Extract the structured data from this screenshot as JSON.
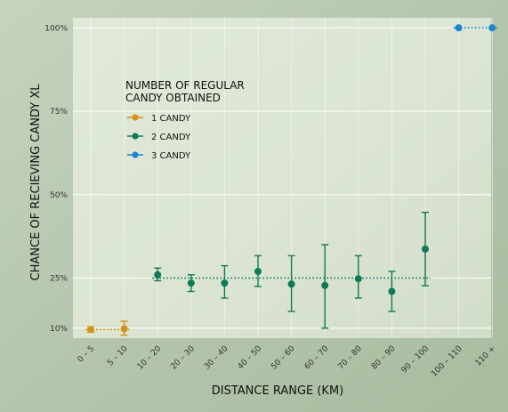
{
  "chart_data": {
    "type": "scatter",
    "xlabel": "DISTANCE RANGE (KM)",
    "ylabel": "CHANCE OF RECIEVING CANDY XL",
    "categories": [
      "0 – 5",
      "5 – 10",
      "10 – 20",
      "20 – 30",
      "30 – 40",
      "40 – 50",
      "50 – 60",
      "60 – 70",
      "70 – 80",
      "80 – 90",
      "90 – 100",
      "100 – 110",
      "110 +"
    ],
    "y_ticks": [
      {
        "value": 100,
        "label": "100%"
      },
      {
        "value": 75,
        "label": "75%"
      },
      {
        "value": 50,
        "label": "50%"
      },
      {
        "value": 25,
        "label": "25%"
      },
      {
        "value": 10,
        "label": "10%"
      }
    ],
    "ylim": [
      7,
      103
    ],
    "grid": true,
    "legend": {
      "title_line1": "NUMBER OF REGULAR",
      "title_line2": "CANDY OBTAINED",
      "placement": "top-left"
    },
    "series": [
      {
        "name": "1 CANDY",
        "color": "#d19415",
        "mean": 9.6,
        "points": [
          {
            "category": "0 – 5",
            "y": 9.6,
            "low": 8.8,
            "high": 10.4
          },
          {
            "category": "5 – 10",
            "y": 9.8,
            "low": 7.9,
            "high": 12.1
          }
        ]
      },
      {
        "name": "2 CANDY",
        "color": "#0f7a57",
        "mean": 25,
        "points": [
          {
            "category": "10 – 20",
            "y": 26.0,
            "low": 24.2,
            "high": 28.0
          },
          {
            "category": "20 – 30",
            "y": 23.5,
            "low": 21.0,
            "high": 26.0
          },
          {
            "category": "30 – 40",
            "y": 23.5,
            "low": 19.0,
            "high": 28.7
          },
          {
            "category": "40 – 50",
            "y": 27.0,
            "low": 22.5,
            "high": 31.7
          },
          {
            "category": "50 – 60",
            "y": 23.2,
            "low": 15.0,
            "high": 31.7
          },
          {
            "category": "60 – 70",
            "y": 22.8,
            "low": 10.0,
            "high": 35.0
          },
          {
            "category": "70 – 80",
            "y": 24.8,
            "low": 19.0,
            "high": 31.7
          },
          {
            "category": "80 – 90",
            "y": 21.0,
            "low": 15.0,
            "high": 27.0
          },
          {
            "category": "90 – 100",
            "y": 33.7,
            "low": 22.7,
            "high": 44.7
          }
        ]
      },
      {
        "name": "3 CANDY",
        "color": "#1a85cf",
        "mean": 100,
        "points": [
          {
            "category": "100 – 110",
            "y": 100
          },
          {
            "category": "110 +",
            "y": 100
          }
        ]
      }
    ]
  }
}
